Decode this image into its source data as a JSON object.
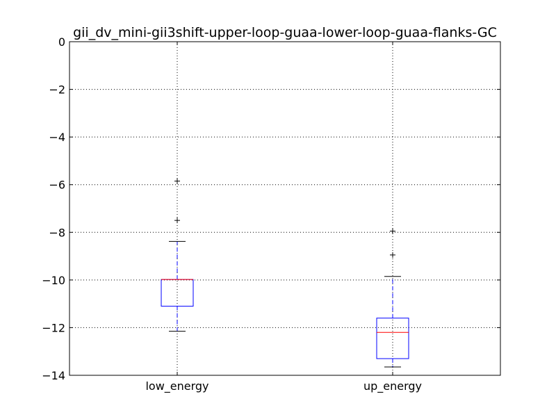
{
  "chart_data": {
    "type": "box",
    "title": "gii_dv_mini-gii3shift-upper-loop-guaa-lower-loop-guaa-flanks-GC",
    "xlabel": "",
    "ylabel": "",
    "ylim": [
      -14,
      0
    ],
    "yticks": [
      0,
      -2,
      -4,
      -6,
      -8,
      -10,
      -12,
      -14
    ],
    "ytick_labels": [
      "0",
      "−2",
      "−4",
      "−6",
      "−8",
      "−10",
      "−12",
      "−14"
    ],
    "grid": true,
    "categories": [
      "low_energy",
      "up_energy"
    ],
    "boxes": [
      {
        "name": "low_energy",
        "whisker_low": -12.15,
        "q1": -11.1,
        "median": -9.98,
        "q3": -9.98,
        "whisker_high": -8.38,
        "outliers": [
          -7.5,
          -5.85
        ]
      },
      {
        "name": "up_energy",
        "whisker_low": -13.65,
        "q1": -13.3,
        "median": -12.2,
        "q3": -11.6,
        "whisker_high": -9.85,
        "outliers": [
          -8.95,
          -7.95
        ]
      }
    ],
    "colors": {
      "box": "#0000ff",
      "median": "#ff0000",
      "whisker": "#0000ff",
      "cap": "#000000",
      "outlier": "#000000",
      "grid": "#000000"
    }
  }
}
